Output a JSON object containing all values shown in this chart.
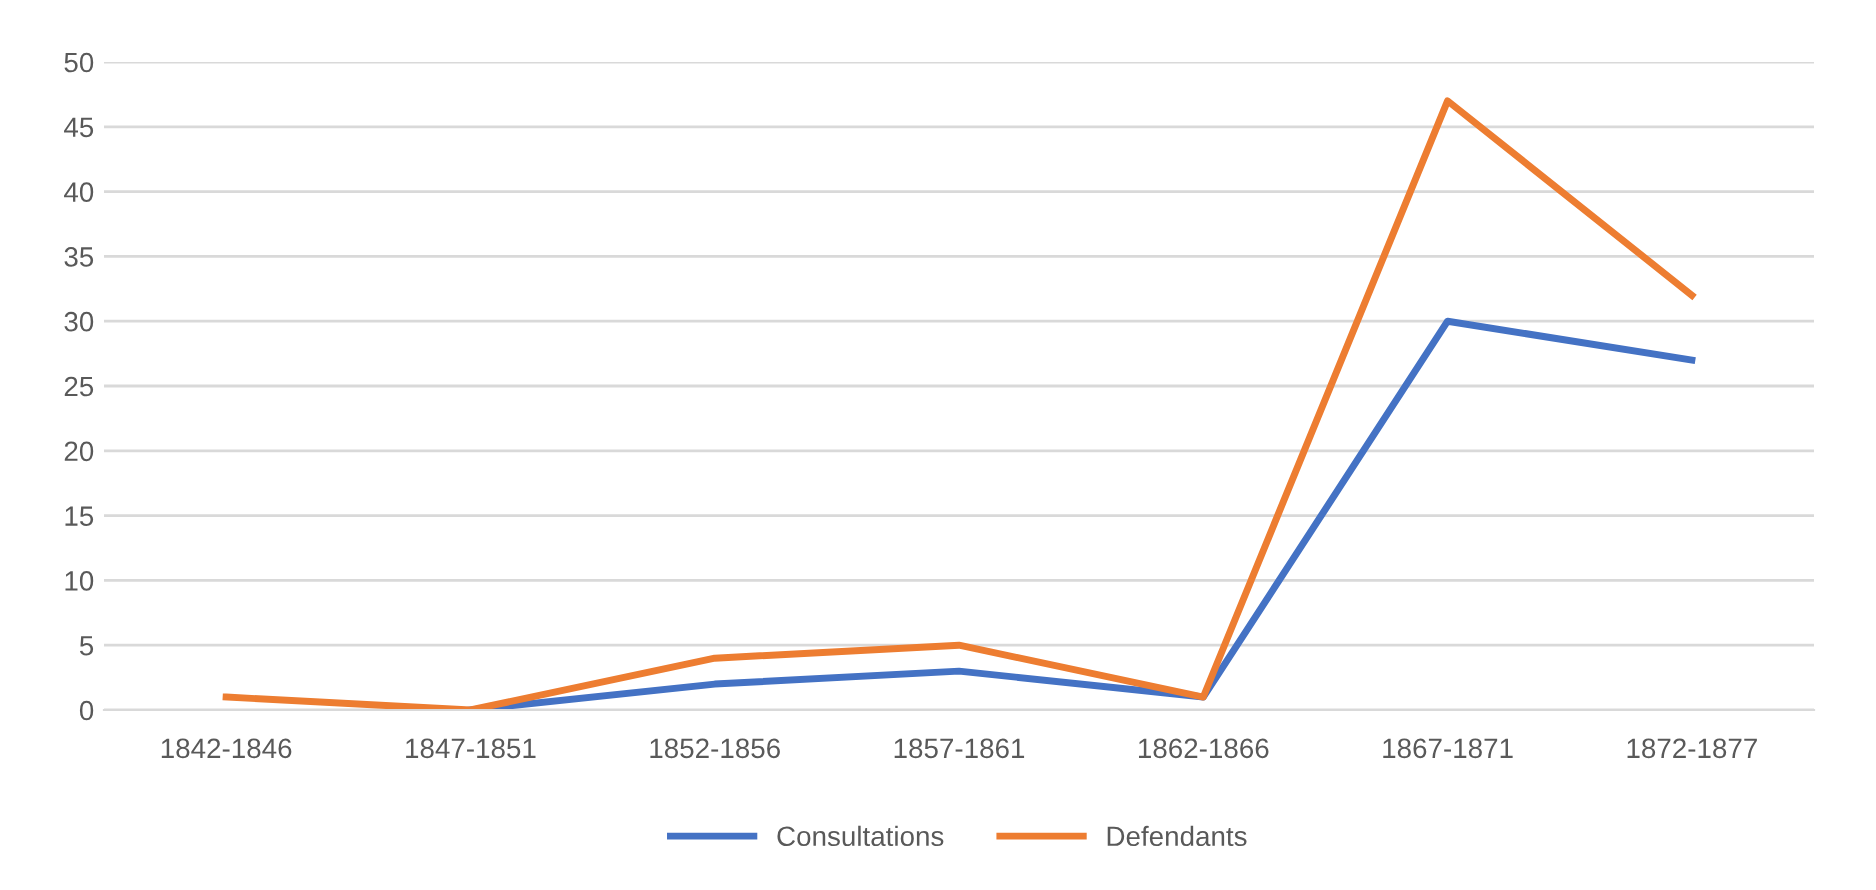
{
  "chart_data": {
    "type": "line",
    "categories": [
      "1842-1846",
      "1847-1851",
      "1852-1856",
      "1857-1861",
      "1862-1866",
      "1867-1871",
      "1872-1877"
    ],
    "series": [
      {
        "name": "Consultations",
        "color": "#4472c4",
        "values": [
          null,
          0,
          2,
          3,
          1,
          30,
          27
        ]
      },
      {
        "name": "Defendants",
        "color": "#ed7d31",
        "values": [
          1,
          0,
          4,
          5,
          1,
          47,
          32
        ]
      }
    ],
    "ylim": [
      0,
      50
    ],
    "yticks": [
      0,
      5,
      10,
      15,
      20,
      25,
      30,
      35,
      40,
      45,
      50
    ],
    "grid": "y",
    "legend": "bottom",
    "marker": "none",
    "line_style": "solid"
  }
}
